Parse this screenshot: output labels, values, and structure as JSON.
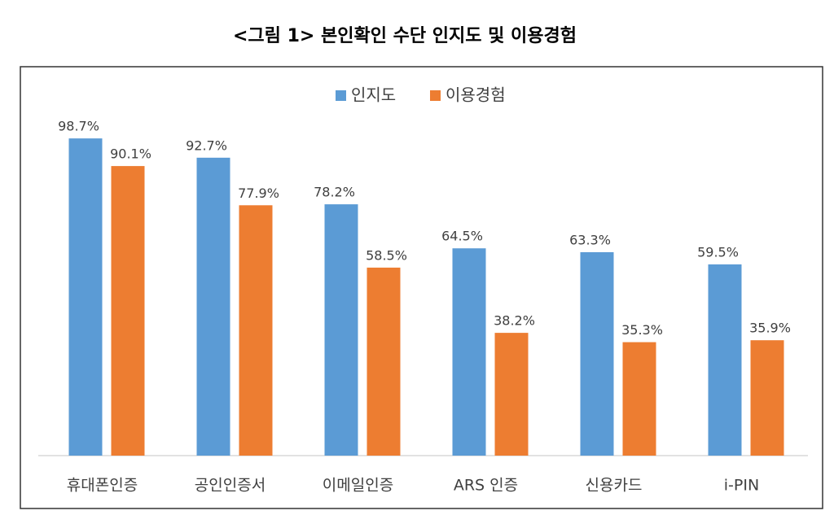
{
  "chart_data": {
    "type": "bar",
    "title": "<그림 1> 본인확인 수단 인지도 및 이용경험",
    "categories": [
      "휴대폰인증",
      "공인인증서",
      "이메일인증",
      "ARS 인증",
      "신용카드",
      "i-PIN"
    ],
    "series": [
      {
        "name": "인지도",
        "color": "#5b9bd5",
        "values": [
          98.7,
          92.7,
          78.2,
          64.5,
          63.3,
          59.5
        ],
        "value_labels": [
          "98.7%",
          "92.7%",
          "78.2%",
          "64.5%",
          "63.3%",
          "59.5%"
        ]
      },
      {
        "name": "이용경험",
        "color": "#ed7d31",
        "values": [
          90.1,
          77.9,
          58.5,
          38.2,
          35.3,
          35.9
        ],
        "value_labels": [
          "90.1%",
          "77.9%",
          "58.5%",
          "38.2%",
          "35.3%",
          "35.9%"
        ]
      }
    ],
    "ylim": [
      0,
      100
    ],
    "legend": "top"
  }
}
